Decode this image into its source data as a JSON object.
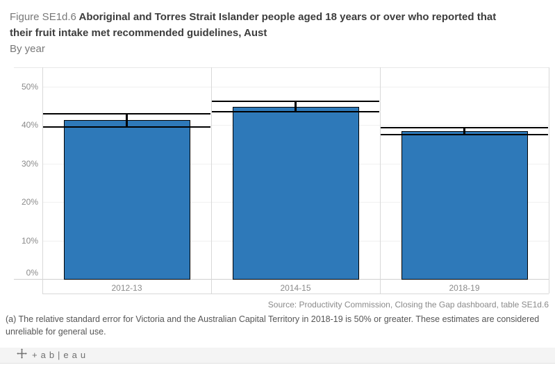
{
  "header": {
    "figure_label": "Figure SE1d.6",
    "title_line1": "Aboriginal and Torres Strait Islander people aged 18 years or over who reported that",
    "title_line2": "their fruit intake met recommended guidelines, Aust",
    "subtitle": "By year"
  },
  "chart_data": {
    "type": "bar",
    "title": "Figure SE1d.6 Aboriginal and Torres Strait Islander people aged 18 years or over who reported that their fruit intake met recommended guidelines, Aust",
    "subtitle": "By year",
    "categories": [
      "2012-13",
      "2014-15",
      "2018-19"
    ],
    "values": [
      41.3,
      44.8,
      38.4
    ],
    "error_bars": [
      [
        39.5,
        42.9
      ],
      [
        43.5,
        46.1
      ],
      [
        37.5,
        39.3
      ]
    ],
    "xlabel": "",
    "ylabel": "",
    "ylim": [
      0,
      55
    ],
    "yticks": [
      0,
      10,
      20,
      30,
      40,
      50
    ],
    "ytick_labels": [
      "0%",
      "10%",
      "20%",
      "30%",
      "40%",
      "50%"
    ],
    "grid": true,
    "legend": "none",
    "bar_color": "#2e79b9",
    "bar_border_color": "#000000",
    "error_color": "#000000"
  },
  "footer": {
    "source": "Source: Productivity Commission, Closing the Gap dashboard, table SE1d.6",
    "footnote": "(a) The relative standard error for Victoria and the Australian Capital Territory in 2018-19 is 50% or greater. These estimates are considered unreliable for general use."
  },
  "footer_bar": {
    "logo_icon": "tableau-logo-icon",
    "wordmark": "+ab|eau"
  }
}
